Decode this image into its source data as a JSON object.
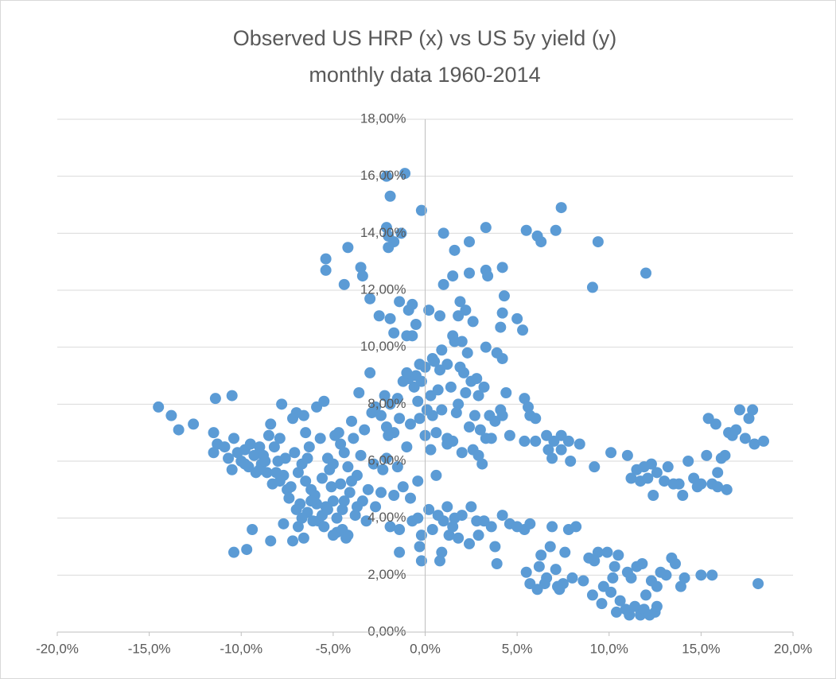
{
  "chart_data": {
    "type": "scatter",
    "title": "Observed US HRP (x) vs US 5y yield (y)",
    "subtitle": "monthly data 1960-2014",
    "color": "#5b9bd5",
    "grid": true,
    "xlim": [
      -20,
      20
    ],
    "ylim": [
      0,
      18
    ],
    "xticks": [
      {
        "value": -20,
        "label": "-20,0%"
      },
      {
        "value": -15,
        "label": "-15,0%"
      },
      {
        "value": -10,
        "label": "-10,0%"
      },
      {
        "value": -5,
        "label": "-5,0%"
      },
      {
        "value": 0,
        "label": "0,0%"
      },
      {
        "value": 5,
        "label": "5,0%"
      },
      {
        "value": 10,
        "label": "10,0%"
      },
      {
        "value": 15,
        "label": "15,0%"
      },
      {
        "value": 20,
        "label": "20,0%"
      }
    ],
    "yticks": [
      {
        "value": 0,
        "label": "0,00%"
      },
      {
        "value": 2,
        "label": "2,00%"
      },
      {
        "value": 4,
        "label": "4,00%"
      },
      {
        "value": 6,
        "label": "6,00%"
      },
      {
        "value": 8,
        "label": "8,00%"
      },
      {
        "value": 10,
        "label": "10,00%"
      },
      {
        "value": 12,
        "label": "12,00%"
      },
      {
        "value": 14,
        "label": "14,00%"
      },
      {
        "value": 16,
        "label": "16,00%"
      },
      {
        "value": 18,
        "label": "18,00%"
      }
    ],
    "points": [
      [
        -14.5,
        7.9
      ],
      [
        -13.8,
        7.6
      ],
      [
        -13.4,
        7.1
      ],
      [
        -12.6,
        7.3
      ],
      [
        -11.4,
        8.2
      ],
      [
        -10.5,
        8.3
      ],
      [
        -11.5,
        7.0
      ],
      [
        -11.3,
        6.6
      ],
      [
        -11.5,
        6.3
      ],
      [
        -10.9,
        6.5
      ],
      [
        -10.7,
        6.1
      ],
      [
        -10.4,
        6.8
      ],
      [
        -10.2,
        6.3
      ],
      [
        -10.5,
        5.7
      ],
      [
        -10.0,
        6.0
      ],
      [
        -9.8,
        6.4
      ],
      [
        -9.6,
        5.8
      ],
      [
        -9.5,
        6.6
      ],
      [
        -9.3,
        6.2
      ],
      [
        -9.2,
        5.6
      ],
      [
        -9.0,
        6.5
      ],
      [
        -8.9,
        5.9
      ],
      [
        -8.8,
        6.2
      ],
      [
        -8.6,
        5.6
      ],
      [
        -8.5,
        6.9
      ],
      [
        -8.4,
        7.3
      ],
      [
        -8.2,
        6.5
      ],
      [
        -8.3,
        5.2
      ],
      [
        -8.0,
        6.0
      ],
      [
        -7.9,
        6.8
      ],
      [
        -7.8,
        8.0
      ],
      [
        -7.7,
        5.5
      ],
      [
        -7.5,
        5.0
      ],
      [
        -7.4,
        4.7
      ],
      [
        -7.2,
        7.5
      ],
      [
        -7.0,
        7.7
      ],
      [
        -7.1,
        6.3
      ],
      [
        -6.9,
        5.6
      ],
      [
        -6.8,
        4.5
      ],
      [
        -6.7,
        5.9
      ],
      [
        -6.6,
        7.6
      ],
      [
        -6.5,
        7.0
      ],
      [
        -6.4,
        4.2
      ],
      [
        -6.3,
        6.5
      ],
      [
        -6.2,
        5.0
      ],
      [
        -6.0,
        4.8
      ],
      [
        -5.9,
        7.9
      ],
      [
        -5.8,
        3.9
      ],
      [
        -5.7,
        6.8
      ],
      [
        -5.6,
        5.4
      ],
      [
        -5.5,
        8.1
      ],
      [
        -5.4,
        4.4
      ],
      [
        -5.3,
        6.1
      ],
      [
        -5.2,
        5.7
      ],
      [
        -5.0,
        4.6
      ],
      [
        -4.9,
        6.9
      ],
      [
        -4.8,
        3.5
      ],
      [
        -4.7,
        7.0
      ],
      [
        -4.6,
        5.2
      ],
      [
        -4.5,
        4.3
      ],
      [
        -4.4,
        6.3
      ],
      [
        -4.3,
        3.3
      ],
      [
        -4.2,
        5.8
      ],
      [
        -4.1,
        4.9
      ],
      [
        -4.0,
        7.4
      ],
      [
        -3.9,
        6.8
      ],
      [
        -3.8,
        4.1
      ],
      [
        -3.7,
        5.5
      ],
      [
        -3.6,
        8.4
      ],
      [
        -3.5,
        6.2
      ],
      [
        -3.4,
        4.6
      ],
      [
        -3.3,
        7.1
      ],
      [
        -3.2,
        3.9
      ],
      [
        -3.1,
        5.0
      ],
      [
        -3.0,
        9.1
      ],
      [
        -2.9,
        7.7
      ],
      [
        -10.4,
        2.8
      ],
      [
        -9.7,
        2.9
      ],
      [
        -9.4,
        3.6
      ],
      [
        -8.4,
        3.2
      ],
      [
        -7.7,
        3.8
      ],
      [
        -7.2,
        3.2
      ],
      [
        -6.9,
        3.7
      ],
      [
        -6.6,
        3.3
      ],
      [
        -6.1,
        3.9
      ],
      [
        -5.5,
        3.7
      ],
      [
        -5.0,
        3.4
      ],
      [
        -4.5,
        3.6
      ],
      [
        -4.2,
        3.4
      ],
      [
        -9.0,
        5.7
      ],
      [
        -8.7,
        6.0
      ],
      [
        -9.8,
        5.9
      ],
      [
        -7.6,
        6.1
      ],
      [
        -6.4,
        6.1
      ],
      [
        -7.3,
        5.1
      ],
      [
        -7.0,
        4.3
      ],
      [
        -6.7,
        4.0
      ],
      [
        -5.9,
        4.5
      ],
      [
        -5.6,
        4.1
      ],
      [
        -5.1,
        5.1
      ],
      [
        -4.8,
        4.0
      ],
      [
        -4.4,
        4.6
      ],
      [
        -4.0,
        5.3
      ],
      [
        -3.7,
        4.4
      ],
      [
        -6.2,
        4.6
      ],
      [
        -5.3,
        4.3
      ],
      [
        -6.5,
        5.3
      ],
      [
        -7.9,
        5.3
      ],
      [
        -8.1,
        5.6
      ],
      [
        -5.0,
        5.9
      ],
      [
        -4.6,
        6.6
      ],
      [
        -5.4,
        13.1
      ],
      [
        -5.4,
        12.7
      ],
      [
        -4.2,
        13.5
      ],
      [
        -3.5,
        12.8
      ],
      [
        -3.4,
        12.5
      ],
      [
        -4.4,
        12.2
      ],
      [
        -3.0,
        11.7
      ],
      [
        -2.1,
        16.0
      ],
      [
        -1.1,
        16.1
      ],
      [
        -1.9,
        15.3
      ],
      [
        -2.1,
        14.2
      ],
      [
        -2.0,
        13.9
      ],
      [
        -1.7,
        13.7
      ],
      [
        -1.3,
        14.0
      ],
      [
        -0.2,
        14.8
      ],
      [
        -2.0,
        13.5
      ],
      [
        -2.5,
        11.1
      ],
      [
        -1.9,
        11.0
      ],
      [
        -1.4,
        11.6
      ],
      [
        -0.9,
        11.3
      ],
      [
        -0.7,
        11.5
      ],
      [
        -0.5,
        10.8
      ],
      [
        -0.7,
        10.4
      ],
      [
        -1.7,
        10.5
      ],
      [
        -1.0,
        10.4
      ],
      [
        0.2,
        11.3
      ],
      [
        0.8,
        11.1
      ],
      [
        1.0,
        12.2
      ],
      [
        1.5,
        12.5
      ],
      [
        2.4,
        12.6
      ],
      [
        1.0,
        14.0
      ],
      [
        2.4,
        13.7
      ],
      [
        1.6,
        13.4
      ],
      [
        3.3,
        14.2
      ],
      [
        3.3,
        12.7
      ],
      [
        3.4,
        12.5
      ],
      [
        4.2,
        12.8
      ],
      [
        4.3,
        11.8
      ],
      [
        4.2,
        11.2
      ],
      [
        4.1,
        10.7
      ],
      [
        2.2,
        11.3
      ],
      [
        1.9,
        11.6
      ],
      [
        1.8,
        11.1
      ],
      [
        2.6,
        10.9
      ],
      [
        3.9,
        9.8
      ],
      [
        4.2,
        9.6
      ],
      [
        3.3,
        10.0
      ],
      [
        1.6,
        10.2
      ],
      [
        2.0,
        10.2
      ],
      [
        1.2,
        9.4
      ],
      [
        0.9,
        9.9
      ],
      [
        0.4,
        9.6
      ],
      [
        0.0,
        9.3
      ],
      [
        -0.3,
        9.4
      ],
      [
        -0.5,
        9.0
      ],
      [
        -0.9,
        8.9
      ],
      [
        -1.2,
        8.8
      ],
      [
        -0.6,
        8.6
      ],
      [
        0.3,
        8.3
      ],
      [
        0.7,
        8.5
      ],
      [
        1.4,
        8.6
      ],
      [
        1.8,
        8.0
      ],
      [
        2.1,
        9.1
      ],
      [
        2.5,
        8.8
      ],
      [
        2.9,
        8.3
      ],
      [
        3.2,
        8.6
      ],
      [
        2.7,
        7.6
      ],
      [
        2.4,
        7.2
      ],
      [
        3.0,
        7.1
      ],
      [
        3.3,
        6.8
      ],
      [
        3.6,
        6.8
      ],
      [
        2.6,
        6.4
      ],
      [
        2.9,
        6.2
      ],
      [
        3.1,
        5.9
      ],
      [
        1.5,
        6.7
      ],
      [
        1.2,
        6.8
      ],
      [
        0.6,
        7.0
      ],
      [
        0.4,
        7.6
      ],
      [
        0.1,
        7.8
      ],
      [
        -0.3,
        7.5
      ],
      [
        -0.8,
        7.3
      ],
      [
        -1.4,
        7.5
      ],
      [
        -1.7,
        7.0
      ],
      [
        -2.1,
        7.2
      ],
      [
        -2.4,
        7.6
      ],
      [
        -2.2,
        8.3
      ],
      [
        -1.9,
        8.0
      ],
      [
        -1.5,
        8.2
      ],
      [
        -0.4,
        8.1
      ],
      [
        0.9,
        7.8
      ],
      [
        1.7,
        7.7
      ],
      [
        2.2,
        8.4
      ],
      [
        2.8,
        8.9
      ],
      [
        3.5,
        7.6
      ],
      [
        3.8,
        7.4
      ],
      [
        4.1,
        7.8
      ],
      [
        4.4,
        8.4
      ],
      [
        4.2,
        7.6
      ],
      [
        4.6,
        6.9
      ],
      [
        1.9,
        9.3
      ],
      [
        2.3,
        9.8
      ],
      [
        1.5,
        10.4
      ],
      [
        0.8,
        9.2
      ],
      [
        -1.0,
        9.1
      ],
      [
        -0.2,
        8.8
      ],
      [
        0.5,
        9.5
      ],
      [
        -2.7,
        7.9
      ],
      [
        -2.0,
        6.9
      ],
      [
        -1.0,
        6.5
      ],
      [
        0.3,
        6.4
      ],
      [
        1.2,
        6.6
      ],
      [
        2.0,
        6.3
      ],
      [
        -1.2,
        5.1
      ],
      [
        -0.4,
        5.3
      ],
      [
        -1.5,
        5.8
      ],
      [
        -2.3,
        5.7
      ],
      [
        -2.8,
        5.9
      ],
      [
        -2.1,
        6.1
      ],
      [
        0.0,
        6.9
      ],
      [
        0.6,
        5.5
      ],
      [
        -0.8,
        4.7
      ],
      [
        -1.7,
        4.8
      ],
      [
        -2.7,
        4.4
      ],
      [
        -2.4,
        4.9
      ],
      [
        5.0,
        11.0
      ],
      [
        5.3,
        10.6
      ],
      [
        5.5,
        14.1
      ],
      [
        6.1,
        13.9
      ],
      [
        6.3,
        13.7
      ],
      [
        7.1,
        14.1
      ],
      [
        7.4,
        14.9
      ],
      [
        9.4,
        13.7
      ],
      [
        9.1,
        12.1
      ],
      [
        12.0,
        12.6
      ],
      [
        5.4,
        8.2
      ],
      [
        5.6,
        7.9
      ],
      [
        5.7,
        7.6
      ],
      [
        6.0,
        7.5
      ],
      [
        5.4,
        6.7
      ],
      [
        6.0,
        6.7
      ],
      [
        6.6,
        6.9
      ],
      [
        6.7,
        6.4
      ],
      [
        6.9,
        6.1
      ],
      [
        7.0,
        6.7
      ],
      [
        7.4,
        6.9
      ],
      [
        7.4,
        6.4
      ],
      [
        7.8,
        6.7
      ],
      [
        7.9,
        6.0
      ],
      [
        8.4,
        6.6
      ],
      [
        9.2,
        5.8
      ],
      [
        10.1,
        6.3
      ],
      [
        11.0,
        6.2
      ],
      [
        11.2,
        5.4
      ],
      [
        11.5,
        5.7
      ],
      [
        11.7,
        5.3
      ],
      [
        11.9,
        5.8
      ],
      [
        12.1,
        5.4
      ],
      [
        12.3,
        5.9
      ],
      [
        12.4,
        4.8
      ],
      [
        12.6,
        5.6
      ],
      [
        13.0,
        5.3
      ],
      [
        13.2,
        5.8
      ],
      [
        13.8,
        5.2
      ],
      [
        14.0,
        4.8
      ],
      [
        14.3,
        6.0
      ],
      [
        14.6,
        5.4
      ],
      [
        14.8,
        5.1
      ],
      [
        15.0,
        5.2
      ],
      [
        15.3,
        6.2
      ],
      [
        15.4,
        7.5
      ],
      [
        15.6,
        5.2
      ],
      [
        15.8,
        7.3
      ],
      [
        15.9,
        5.6
      ],
      [
        16.1,
        6.1
      ],
      [
        16.3,
        6.2
      ],
      [
        16.4,
        5.0
      ],
      [
        16.5,
        7.0
      ],
      [
        16.7,
        6.9
      ],
      [
        16.9,
        7.1
      ],
      [
        17.1,
        7.8
      ],
      [
        17.4,
        6.8
      ],
      [
        17.6,
        7.5
      ],
      [
        17.8,
        7.8
      ],
      [
        17.9,
        6.6
      ],
      [
        18.4,
        6.7
      ],
      [
        15.9,
        5.1
      ],
      [
        13.5,
        5.2
      ],
      [
        -1.9,
        3.7
      ],
      [
        -1.4,
        3.6
      ],
      [
        -0.7,
        3.9
      ],
      [
        -0.4,
        4.0
      ],
      [
        0.2,
        4.3
      ],
      [
        0.7,
        4.1
      ],
      [
        1.2,
        4.4
      ],
      [
        1.6,
        4.0
      ],
      [
        2.0,
        4.1
      ],
      [
        2.5,
        4.4
      ],
      [
        2.8,
        3.9
      ],
      [
        3.2,
        3.9
      ],
      [
        3.6,
        3.7
      ],
      [
        4.2,
        4.1
      ],
      [
        4.6,
        3.8
      ],
      [
        5.0,
        3.7
      ],
      [
        5.4,
        3.6
      ],
      [
        5.7,
        3.8
      ],
      [
        -0.2,
        3.4
      ],
      [
        -0.3,
        3.0
      ],
      [
        -1.4,
        2.8
      ],
      [
        -0.2,
        2.5
      ],
      [
        0.8,
        2.5
      ],
      [
        0.9,
        2.8
      ],
      [
        1.3,
        3.4
      ],
      [
        1.8,
        3.3
      ],
      [
        2.4,
        3.1
      ],
      [
        2.9,
        3.4
      ],
      [
        3.8,
        3.0
      ],
      [
        3.9,
        2.4
      ],
      [
        1.0,
        3.9
      ],
      [
        1.5,
        3.7
      ],
      [
        0.4,
        3.6
      ],
      [
        5.5,
        2.1
      ],
      [
        5.7,
        1.7
      ],
      [
        6.1,
        1.5
      ],
      [
        6.2,
        2.3
      ],
      [
        6.3,
        2.7
      ],
      [
        6.6,
        1.9
      ],
      [
        6.8,
        3.0
      ],
      [
        6.9,
        3.7
      ],
      [
        7.1,
        2.2
      ],
      [
        7.3,
        1.5
      ],
      [
        7.5,
        1.7
      ],
      [
        7.6,
        2.8
      ],
      [
        7.8,
        3.6
      ],
      [
        8.2,
        3.7
      ],
      [
        8.6,
        1.8
      ],
      [
        8.9,
        2.6
      ],
      [
        9.1,
        1.3
      ],
      [
        9.4,
        2.8
      ],
      [
        9.6,
        1.0
      ],
      [
        9.7,
        1.6
      ],
      [
        9.9,
        2.8
      ],
      [
        10.1,
        1.4
      ],
      [
        10.3,
        2.3
      ],
      [
        10.4,
        0.7
      ],
      [
        10.5,
        2.7
      ],
      [
        10.6,
        1.1
      ],
      [
        10.9,
        0.8
      ],
      [
        11.1,
        0.6
      ],
      [
        11.2,
        1.9
      ],
      [
        11.4,
        0.9
      ],
      [
        11.5,
        2.3
      ],
      [
        11.7,
        0.6
      ],
      [
        11.8,
        2.4
      ],
      [
        11.9,
        0.8
      ],
      [
        12.0,
        1.3
      ],
      [
        12.2,
        0.6
      ],
      [
        12.3,
        1.8
      ],
      [
        12.5,
        0.7
      ],
      [
        12.6,
        1.6
      ],
      [
        12.6,
        0.9
      ],
      [
        13.1,
        2.0
      ],
      [
        13.4,
        2.6
      ],
      [
        13.6,
        2.4
      ],
      [
        13.9,
        1.6
      ],
      [
        14.1,
        1.9
      ],
      [
        15.0,
        2.0
      ],
      [
        15.6,
        2.0
      ],
      [
        18.1,
        1.7
      ],
      [
        8.0,
        1.9
      ],
      [
        9.2,
        2.5
      ],
      [
        10.2,
        1.9
      ],
      [
        11.0,
        2.1
      ],
      [
        12.8,
        2.1
      ],
      [
        7.2,
        1.6
      ],
      [
        6.5,
        1.7
      ]
    ]
  }
}
